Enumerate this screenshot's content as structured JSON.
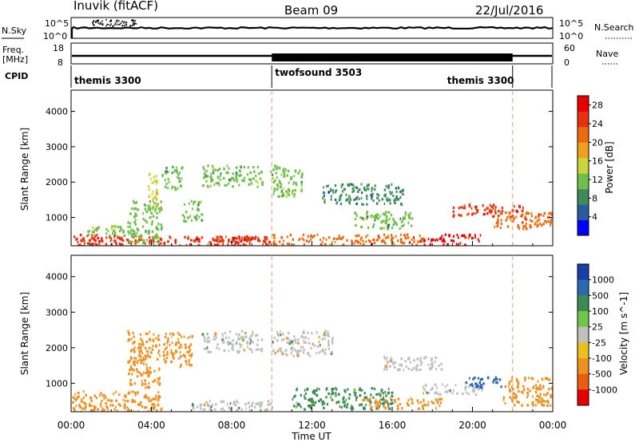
{
  "header": {
    "station": "Inuvik (fitACF)",
    "beam": "Beam 09",
    "date": "22/Jul/2016"
  },
  "top_panel": {
    "left_label": "N.Sky",
    "right_label": "N.Search",
    "left_ticks": [
      "10^5",
      "10^0"
    ],
    "right_ticks": [
      "10^5",
      "10^0"
    ]
  },
  "freq_panel": {
    "left_label_line1": "Freq.",
    "left_label_line2": "[MHz]",
    "left_ticks": [
      "18",
      "8"
    ],
    "right_label": "Nave",
    "right_ticks": [
      "60",
      "0"
    ]
  },
  "cpid": {
    "label": "CPID",
    "segments": [
      {
        "name": "themis 3300",
        "start_h": 0,
        "end_h": 10
      },
      {
        "name": "twofsound 3503",
        "start_h": 10,
        "end_h": 22
      },
      {
        "name": "themis 3300",
        "start_h": 22,
        "end_h": 24
      }
    ]
  },
  "xaxis": {
    "label": "Time UT",
    "ticks": [
      "00:00",
      "04:00",
      "08:00",
      "12:00",
      "16:00",
      "20:00",
      "00:00"
    ]
  },
  "colors": {
    "power": [
      "#0000ff",
      "#2a5aa0",
      "#3f8a5c",
      "#6fbf4a",
      "#c8d63a",
      "#f0a020",
      "#ee6a10",
      "#e83010",
      "#e80000"
    ],
    "velocity": [
      "#1a3ea8",
      "#2c6ab0",
      "#3e8a55",
      "#70c84a",
      "#c0c0c0",
      "#e8c020",
      "#f09020",
      "#ee5a10",
      "#e80000"
    ]
  },
  "chart_data": [
    {
      "type": "heatmap",
      "title": "",
      "xlabel": "",
      "ylabel": "Slant Range [km]",
      "xlim": [
        0,
        24
      ],
      "ylim": [
        200,
        4600
      ],
      "yticks": [
        1000,
        2000,
        3000,
        4000
      ],
      "colorbar": {
        "label": "Power [dB]",
        "ticks": [
          "4",
          "8",
          "12",
          "16",
          "20",
          "24",
          "28"
        ],
        "range": [
          0,
          30
        ]
      },
      "regions": [
        {
          "t0": 0.0,
          "t1": 10.0,
          "r0": 200,
          "r1": 500,
          "level": 24
        },
        {
          "t0": 0.4,
          "t1": 2.5,
          "r0": 250,
          "r1": 550,
          "level": 26
        },
        {
          "t0": 0.8,
          "t1": 3.0,
          "r0": 500,
          "r1": 800,
          "level": 12
        },
        {
          "t0": 2.8,
          "t1": 4.5,
          "r0": 300,
          "r1": 1500,
          "level": 10
        },
        {
          "t0": 3.8,
          "t1": 4.3,
          "r0": 1300,
          "r1": 2300,
          "level": 16
        },
        {
          "t0": 4.5,
          "t1": 5.5,
          "r0": 1800,
          "r1": 2500,
          "level": 12
        },
        {
          "t0": 5.5,
          "t1": 6.5,
          "r0": 900,
          "r1": 1500,
          "level": 10
        },
        {
          "t0": 6.5,
          "t1": 9.5,
          "r0": 1900,
          "r1": 2500,
          "level": 10
        },
        {
          "t0": 7.0,
          "t1": 9.8,
          "r0": 250,
          "r1": 500,
          "level": 26
        },
        {
          "t0": 9.9,
          "t1": 11.5,
          "r0": 1600,
          "r1": 2500,
          "level": 12
        },
        {
          "t0": 10.0,
          "t1": 17.5,
          "r0": 250,
          "r1": 550,
          "level": 22
        },
        {
          "t0": 12.5,
          "t1": 16.5,
          "r0": 1400,
          "r1": 2000,
          "level": 8
        },
        {
          "t0": 14.0,
          "t1": 17.0,
          "r0": 700,
          "r1": 1200,
          "level": 10
        },
        {
          "t0": 17.5,
          "t1": 20.5,
          "r0": 250,
          "r1": 550,
          "level": 28
        },
        {
          "t0": 19.0,
          "t1": 22.5,
          "r0": 1050,
          "r1": 1400,
          "level": 24
        },
        {
          "t0": 21.0,
          "t1": 24.0,
          "r0": 700,
          "r1": 1200,
          "level": 22
        }
      ]
    },
    {
      "type": "heatmap",
      "title": "",
      "xlabel": "Time UT",
      "ylabel": "Slant Range [km]",
      "xlim": [
        0,
        24
      ],
      "ylim": [
        200,
        4600
      ],
      "yticks": [
        1000,
        2000,
        3000,
        4000
      ],
      "colorbar": {
        "label": "Velocity [m s^-1]",
        "ticks": [
          "1000",
          "500",
          "100",
          "25",
          "-25",
          "-100",
          "-500",
          "-1000"
        ]
      },
      "regions": [
        {
          "t0": 0.0,
          "t1": 4.5,
          "r0": 200,
          "r1": 800,
          "level": -300
        },
        {
          "t0": 2.8,
          "t1": 4.4,
          "r0": 900,
          "r1": 2500,
          "level": -250
        },
        {
          "t0": 4.5,
          "t1": 6.0,
          "r0": 1500,
          "r1": 2500,
          "level": -120
        },
        {
          "t0": 6.5,
          "t1": 9.5,
          "r0": 1900,
          "r1": 2500,
          "level": 0
        },
        {
          "t0": 6.0,
          "t1": 10.0,
          "r0": 250,
          "r1": 550,
          "level": 0
        },
        {
          "t0": 10.0,
          "t1": 13.0,
          "r0": 1800,
          "r1": 2500,
          "level": 0
        },
        {
          "t0": 11.0,
          "t1": 16.0,
          "r0": 300,
          "r1": 900,
          "level": 200
        },
        {
          "t0": 14.5,
          "t1": 18.5,
          "r0": 300,
          "r1": 600,
          "level": -250
        },
        {
          "t0": 17.5,
          "t1": 20.5,
          "r0": 700,
          "r1": 1000,
          "level": 0
        },
        {
          "t0": 19.5,
          "t1": 21.5,
          "r0": 900,
          "r1": 1200,
          "level": 700
        },
        {
          "t0": 21.5,
          "t1": 24.0,
          "r0": 400,
          "r1": 1200,
          "level": -350
        },
        {
          "t0": 15.5,
          "t1": 18.5,
          "r0": 1400,
          "r1": 1800,
          "level": 0
        }
      ]
    }
  ]
}
